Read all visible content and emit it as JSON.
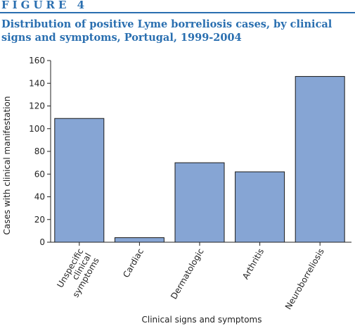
{
  "figure": {
    "label": "FIGURE 4",
    "title": "Distribution of positive Lyme borreliosis cases, by clinical signs and symptoms, Portugal, 1999-2004"
  },
  "colors": {
    "accent": "#2a6fb0",
    "bar_fill": "#86a5d4",
    "bar_stroke": "#1a1a1a"
  },
  "chart_data": {
    "type": "bar",
    "categories": [
      "Unspecific clinical symptoms",
      "Cardiac",
      "Dermatologic",
      "Arthritis",
      "Neuroborreliosis"
    ],
    "category_lines": [
      [
        "Unspecific",
        "clinical",
        "symptoms"
      ],
      [
        "Cardiac"
      ],
      [
        "Dermatologic"
      ],
      [
        "Arthritis"
      ],
      [
        "Neuroborreliosis"
      ]
    ],
    "values": [
      109,
      4,
      70,
      62,
      146
    ],
    "xlabel": "Clinical signs and symptoms",
    "ylabel": "Cases with clinical manifestation",
    "ylim": [
      0,
      160
    ],
    "yticks": [
      0,
      20,
      40,
      60,
      80,
      100,
      120,
      140,
      160
    ],
    "grid": false,
    "legend": "none"
  }
}
